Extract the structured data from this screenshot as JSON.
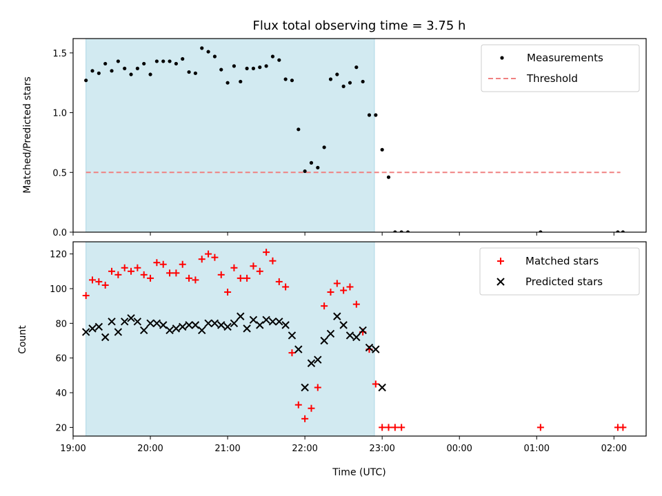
{
  "chart_data": [
    {
      "type": "scatter",
      "title": "Flux total observing time = 3.75 h",
      "xlabel": "",
      "ylabel": "Matched/Predicted stars",
      "ylim": [
        0,
        1.62
      ],
      "yticks": [
        0.0,
        0.5,
        1.0,
        1.5
      ],
      "ytick_labels": [
        "0.0",
        "0.5",
        "1.0",
        "1.5"
      ],
      "xlim": [
        "19:00",
        "02:25"
      ],
      "shaded_range": [
        "19:10",
        "22:54"
      ],
      "shade_color": "#add8e6",
      "legend": {
        "position": "top-right",
        "entries": [
          {
            "label": "Measurements",
            "marker": "dot",
            "color": "#000000"
          },
          {
            "label": "Threshold",
            "marker": "dashed-line",
            "color": "#f08080"
          }
        ]
      },
      "threshold": {
        "name": "Threshold",
        "y": 0.5,
        "x_range": [
          "19:10",
          "02:05"
        ],
        "color": "#f08080"
      },
      "series": [
        {
          "name": "Measurements",
          "color": "#000000",
          "points": [
            [
              "19:10",
              1.27
            ],
            [
              "19:15",
              1.35
            ],
            [
              "19:20",
              1.33
            ],
            [
              "19:25",
              1.41
            ],
            [
              "19:30",
              1.35
            ],
            [
              "19:35",
              1.43
            ],
            [
              "19:40",
              1.37
            ],
            [
              "19:45",
              1.32
            ],
            [
              "19:50",
              1.37
            ],
            [
              "19:55",
              1.41
            ],
            [
              "20:00",
              1.32
            ],
            [
              "20:05",
              1.43
            ],
            [
              "20:10",
              1.43
            ],
            [
              "20:15",
              1.43
            ],
            [
              "20:20",
              1.41
            ],
            [
              "20:25",
              1.45
            ],
            [
              "20:30",
              1.34
            ],
            [
              "20:35",
              1.33
            ],
            [
              "20:40",
              1.54
            ],
            [
              "20:45",
              1.51
            ],
            [
              "20:50",
              1.47
            ],
            [
              "20:55",
              1.36
            ],
            [
              "21:00",
              1.25
            ],
            [
              "21:05",
              1.39
            ],
            [
              "21:10",
              1.26
            ],
            [
              "21:15",
              1.37
            ],
            [
              "21:20",
              1.37
            ],
            [
              "21:25",
              1.38
            ],
            [
              "21:30",
              1.39
            ],
            [
              "21:35",
              1.47
            ],
            [
              "21:40",
              1.44
            ],
            [
              "21:45",
              1.28
            ],
            [
              "21:50",
              1.27
            ],
            [
              "21:55",
              0.86
            ],
            [
              "22:00",
              0.51
            ],
            [
              "22:05",
              0.58
            ],
            [
              "22:10",
              0.54
            ],
            [
              "22:15",
              0.71
            ],
            [
              "22:20",
              1.28
            ],
            [
              "22:25",
              1.32
            ],
            [
              "22:30",
              1.22
            ],
            [
              "22:35",
              1.25
            ],
            [
              "22:40",
              1.38
            ],
            [
              "22:45",
              1.26
            ],
            [
              "22:50",
              0.98
            ],
            [
              "22:55",
              0.98
            ],
            [
              "23:00",
              0.69
            ],
            [
              "23:05",
              0.46
            ],
            [
              "23:10",
              0.0
            ],
            [
              "23:15",
              0.0
            ],
            [
              "23:20",
              0.0
            ],
            [
              "01:03",
              0.0
            ],
            [
              "02:03",
              0.0
            ],
            [
              "02:07",
              0.0
            ]
          ]
        }
      ]
    },
    {
      "type": "scatter",
      "title": "",
      "xlabel": "Time (UTC)",
      "ylabel": "Count",
      "ylim": [
        15,
        127
      ],
      "yticks": [
        20,
        40,
        60,
        80,
        100,
        120
      ],
      "ytick_labels": [
        "20",
        "40",
        "60",
        "80",
        "100",
        "120"
      ],
      "xlim": [
        "19:00",
        "02:25"
      ],
      "xticks": [
        "19:00",
        "20:00",
        "21:00",
        "22:00",
        "23:00",
        "00:00",
        "01:00",
        "02:00"
      ],
      "shaded_range": [
        "19:10",
        "22:54"
      ],
      "shade_color": "#add8e6",
      "legend": {
        "position": "top-right",
        "entries": [
          {
            "label": "Matched stars",
            "marker": "plus",
            "color": "#ff0000"
          },
          {
            "label": "Predicted stars",
            "marker": "x",
            "color": "#000000"
          }
        ]
      },
      "series": [
        {
          "name": "Matched stars",
          "color": "#ff0000",
          "marker": "plus",
          "points": [
            [
              "19:10",
              96
            ],
            [
              "19:15",
              105
            ],
            [
              "19:20",
              104
            ],
            [
              "19:25",
              102
            ],
            [
              "19:30",
              110
            ],
            [
              "19:35",
              108
            ],
            [
              "19:40",
              112
            ],
            [
              "19:45",
              110
            ],
            [
              "19:50",
              112
            ],
            [
              "19:55",
              108
            ],
            [
              "20:00",
              106
            ],
            [
              "20:05",
              115
            ],
            [
              "20:10",
              114
            ],
            [
              "20:15",
              109
            ],
            [
              "20:20",
              109
            ],
            [
              "20:25",
              114
            ],
            [
              "20:30",
              106
            ],
            [
              "20:35",
              105
            ],
            [
              "20:40",
              117
            ],
            [
              "20:45",
              120
            ],
            [
              "20:50",
              118
            ],
            [
              "20:55",
              108
            ],
            [
              "21:00",
              98
            ],
            [
              "21:05",
              112
            ],
            [
              "21:10",
              106
            ],
            [
              "21:15",
              106
            ],
            [
              "21:20",
              113
            ],
            [
              "21:25",
              110
            ],
            [
              "21:30",
              121
            ],
            [
              "21:35",
              116
            ],
            [
              "21:40",
              104
            ],
            [
              "21:45",
              101
            ],
            [
              "21:50",
              63
            ],
            [
              "21:55",
              33
            ],
            [
              "22:00",
              25
            ],
            [
              "22:05",
              31
            ],
            [
              "22:10",
              43
            ],
            [
              "22:15",
              90
            ],
            [
              "22:20",
              98
            ],
            [
              "22:25",
              103
            ],
            [
              "22:30",
              99
            ],
            [
              "22:35",
              101
            ],
            [
              "22:40",
              91
            ],
            [
              "22:45",
              75
            ],
            [
              "22:50",
              65
            ],
            [
              "22:55",
              45
            ],
            [
              "23:00",
              20
            ],
            [
              "23:05",
              20
            ],
            [
              "23:10",
              20
            ],
            [
              "23:15",
              20
            ],
            [
              "01:03",
              20
            ],
            [
              "02:03",
              20
            ],
            [
              "02:07",
              20
            ]
          ]
        },
        {
          "name": "Predicted stars",
          "color": "#000000",
          "marker": "x",
          "points": [
            [
              "19:10",
              75
            ],
            [
              "19:15",
              77
            ],
            [
              "19:20",
              78
            ],
            [
              "19:25",
              72
            ],
            [
              "19:30",
              81
            ],
            [
              "19:35",
              75
            ],
            [
              "19:40",
              81
            ],
            [
              "19:45",
              83
            ],
            [
              "19:50",
              81
            ],
            [
              "19:55",
              76
            ],
            [
              "20:00",
              80
            ],
            [
              "20:05",
              80
            ],
            [
              "20:10",
              79
            ],
            [
              "20:15",
              76
            ],
            [
              "20:20",
              77
            ],
            [
              "20:25",
              78
            ],
            [
              "20:30",
              79
            ],
            [
              "20:35",
              79
            ],
            [
              "20:40",
              76
            ],
            [
              "20:45",
              80
            ],
            [
              "20:50",
              80
            ],
            [
              "20:55",
              79
            ],
            [
              "21:00",
              78
            ],
            [
              "21:05",
              80
            ],
            [
              "21:10",
              84
            ],
            [
              "21:15",
              77
            ],
            [
              "21:20",
              82
            ],
            [
              "21:25",
              79
            ],
            [
              "21:30",
              82
            ],
            [
              "21:35",
              81
            ],
            [
              "21:40",
              81
            ],
            [
              "21:45",
              79
            ],
            [
              "21:50",
              73
            ],
            [
              "21:55",
              65
            ],
            [
              "22:00",
              43
            ],
            [
              "22:05",
              57
            ],
            [
              "22:10",
              59
            ],
            [
              "22:15",
              70
            ],
            [
              "22:20",
              74
            ],
            [
              "22:25",
              84
            ],
            [
              "22:30",
              79
            ],
            [
              "22:35",
              73
            ],
            [
              "22:40",
              72
            ],
            [
              "22:45",
              76
            ],
            [
              "22:50",
              66
            ],
            [
              "22:55",
              65
            ],
            [
              "23:00",
              43
            ]
          ]
        }
      ]
    }
  ]
}
